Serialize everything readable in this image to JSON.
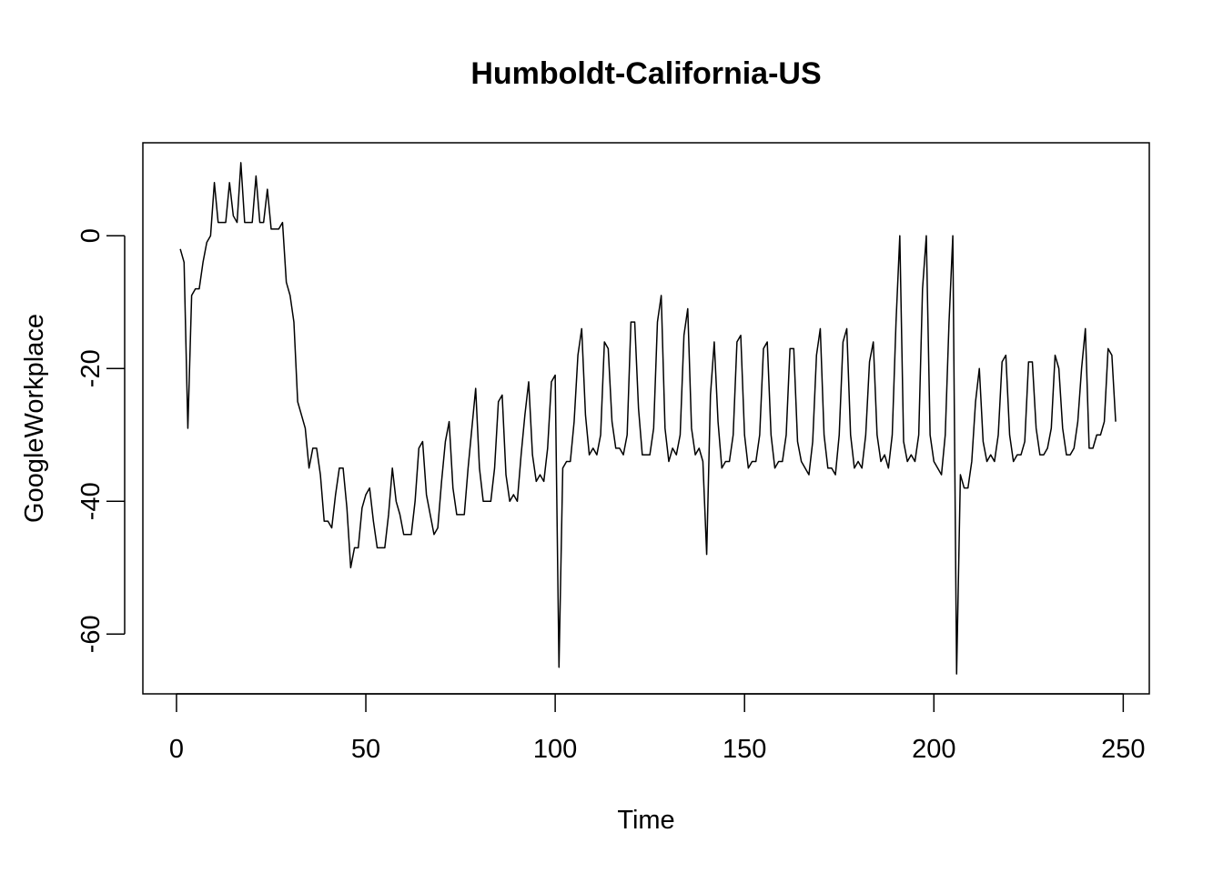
{
  "chart_data": {
    "type": "line",
    "title": "Humboldt-California-US",
    "xlabel": "Time",
    "ylabel": "GoogleWorkplace",
    "xlim": [
      -8.88,
      256.88
    ],
    "ylim": [
      -69.0,
      14.0
    ],
    "xticks": [
      0,
      50,
      100,
      150,
      200,
      250
    ],
    "yticks": [
      -60,
      -40,
      -20,
      0
    ],
    "grid": false,
    "legend": "none",
    "line_color": "#000000",
    "series": [
      {
        "x": [
          1,
          2,
          3,
          4,
          5,
          6,
          7,
          8,
          9,
          10,
          11,
          12,
          13,
          14,
          15,
          16,
          17,
          18,
          19,
          20,
          21,
          22,
          23,
          24,
          25,
          26,
          27,
          28,
          29,
          30,
          31,
          32,
          33,
          34,
          35,
          36,
          37,
          38,
          39,
          40,
          41,
          42,
          43,
          44,
          45,
          46,
          47,
          48,
          49,
          50,
          51,
          52,
          53,
          54,
          55,
          56,
          57,
          58,
          59,
          60,
          61,
          62,
          63,
          64,
          65,
          66,
          67,
          68,
          69,
          70,
          71,
          72,
          73,
          74,
          75,
          76,
          77,
          78,
          79,
          80,
          81,
          82,
          83,
          84,
          85,
          86,
          87,
          88,
          89,
          90,
          91,
          92,
          93,
          94,
          95,
          96,
          97,
          98,
          99,
          100,
          101,
          102,
          103,
          104,
          105,
          106,
          107,
          108,
          109,
          110,
          111,
          112,
          113,
          114,
          115,
          116,
          117,
          118,
          119,
          120,
          121,
          122,
          123,
          124,
          125,
          126,
          127,
          128,
          129,
          130,
          131,
          132,
          133,
          134,
          135,
          136,
          137,
          138,
          139,
          140,
          141,
          142,
          143,
          144,
          145,
          146,
          147,
          148,
          149,
          150,
          151,
          152,
          153,
          154,
          155,
          156,
          157,
          158,
          159,
          160,
          161,
          162,
          163,
          164,
          165,
          166,
          167,
          168,
          169,
          170,
          171,
          172,
          173,
          174,
          175,
          176,
          177,
          178,
          179,
          180,
          181,
          182,
          183,
          184,
          185,
          186,
          187,
          188,
          189,
          190,
          191,
          192,
          193,
          194,
          195,
          196,
          197,
          198,
          199,
          200,
          201,
          202,
          203,
          204,
          205,
          206,
          207,
          208,
          209,
          210,
          211,
          212,
          213,
          214,
          215,
          216,
          217,
          218,
          219,
          220,
          221,
          222,
          223,
          224,
          225,
          226,
          227,
          228,
          229,
          230,
          231,
          232,
          233,
          234,
          235,
          236,
          237,
          238,
          239,
          240,
          241,
          242,
          243,
          244,
          245,
          246,
          247,
          248
        ],
        "values": [
          -2,
          -4,
          -29,
          -9,
          -8,
          -8,
          -4,
          -1,
          0,
          8,
          2,
          2,
          2,
          8,
          3,
          2,
          11,
          2,
          2,
          2,
          9,
          2,
          2,
          7,
          1,
          1,
          1,
          2,
          -7,
          -9,
          -13,
          -25,
          -27,
          -29,
          -35,
          -32,
          -32,
          -36,
          -43,
          -43,
          -44,
          -39,
          -35,
          -35,
          -41,
          -50,
          -47,
          -47,
          -41,
          -39,
          -38,
          -43,
          -47,
          -47,
          -47,
          -42,
          -35,
          -40,
          -42,
          -45,
          -45,
          -45,
          -40,
          -32,
          -31,
          -39,
          -42,
          -45,
          -44,
          -37,
          -31,
          -28,
          -38,
          -42,
          -42,
          -42,
          -35,
          -29,
          -23,
          -35,
          -40,
          -40,
          -40,
          -35,
          -25,
          -24,
          -36,
          -40,
          -39,
          -40,
          -33,
          -27,
          -22,
          -33,
          -37,
          -36,
          -37,
          -32,
          -22,
          -21,
          -65,
          -35,
          -34,
          -34,
          -28,
          -18,
          -14,
          -27,
          -33,
          -32,
          -33,
          -30,
          -16,
          -17,
          -28,
          -32,
          -32,
          -33,
          -30,
          -13,
          -13,
          -26,
          -33,
          -33,
          -33,
          -29,
          -13,
          -9,
          -29,
          -34,
          -32,
          -33,
          -30,
          -15,
          -11,
          -29,
          -33,
          -32,
          -34,
          -48,
          -24,
          -16,
          -28,
          -35,
          -34,
          -34,
          -30,
          -16,
          -15,
          -30,
          -35,
          -34,
          -34,
          -30,
          -17,
          -16,
          -30,
          -35,
          -34,
          -34,
          -30,
          -17,
          -17,
          -31,
          -34,
          -35,
          -36,
          -31,
          -18,
          -14,
          -30,
          -35,
          -35,
          -36,
          -30,
          -16,
          -14,
          -30,
          -35,
          -34,
          -35,
          -30,
          -19,
          -16,
          -30,
          -34,
          -33,
          -35,
          -30,
          -13,
          0,
          -31,
          -34,
          -33,
          -34,
          -30,
          -8,
          0,
          -30,
          -34,
          -35,
          -36,
          -30,
          -13,
          0,
          -66,
          -36,
          -38,
          -38,
          -34,
          -25,
          -20,
          -31,
          -34,
          -33,
          -34,
          -30,
          -19,
          -18,
          -30,
          -34,
          -33,
          -33,
          -31,
          -19,
          -19,
          -29,
          -33,
          -33,
          -32,
          -29,
          -18,
          -20,
          -29,
          -33,
          -33,
          -32,
          -28,
          -20,
          -14,
          -32,
          -32,
          -30,
          -30,
          -28,
          -17,
          -18,
          -28
        ]
      }
    ]
  }
}
